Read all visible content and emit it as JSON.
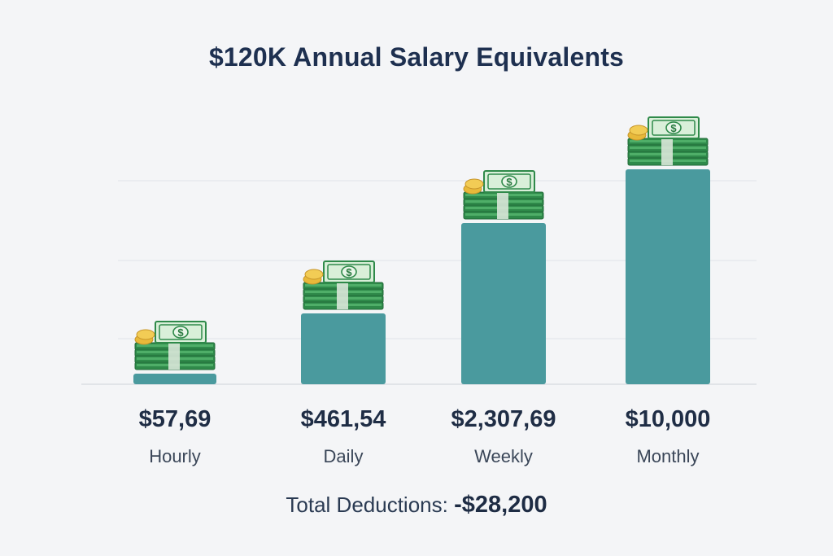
{
  "chart_data": {
    "type": "bar",
    "title": "$120K Annual Salary Equivalents",
    "categories": [
      "Hourly",
      "Daily",
      "Weekly",
      "Monthly"
    ],
    "value_labels": [
      "$57,69",
      "$461,54",
      "$2,307,69",
      "$10,000"
    ],
    "values": [
      57.69,
      461.54,
      2307.69,
      10000
    ],
    "xlabel": "",
    "ylabel": "",
    "grid": true,
    "legend": "none",
    "bar_color": "#4a9a9e",
    "icon": "money-stack-icon"
  },
  "footer": {
    "label": "Total Deductions:",
    "amount": "-$28,200"
  },
  "colors": {
    "background": "#f4f5f7",
    "bill_green": "#3f9a5a",
    "bill_light": "#d9efd9",
    "coin_gold": "#e8b93a"
  }
}
